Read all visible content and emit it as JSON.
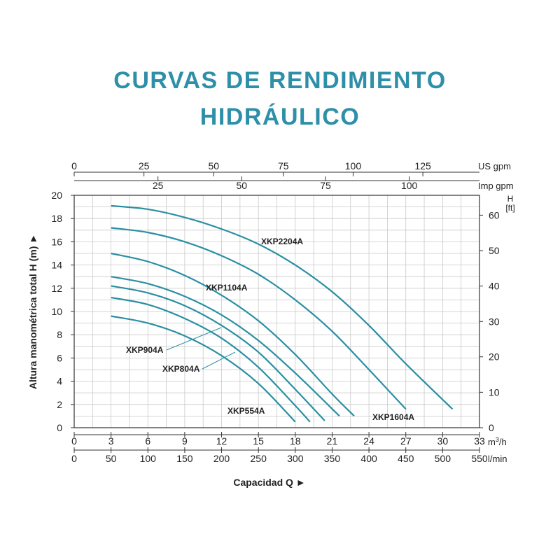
{
  "header": {
    "title_line1": "CURVAS DE RENDIMIENTO",
    "title_line2": "HIDRÁULICO",
    "title_color": "#2e8fa8"
  },
  "chart_data": {
    "type": "line",
    "title": "CURVAS DE RENDIMIENTO HIDRÁULICO",
    "curve_color": "#2a8fa3",
    "grid": true,
    "ylabel": "Altura manométrica total H (m) ►",
    "xlabel": "Capacidad Q ►",
    "x_unit_label": "m³/h",
    "x_unit_base": "m",
    "x_unit_sup": "3",
    "x_unit_tail": "/h",
    "xlim": [
      0,
      33
    ],
    "ylim": [
      0,
      20
    ],
    "x_ticks": [
      "0",
      "3",
      "6",
      "9",
      "12",
      "15",
      "18",
      "21",
      "24",
      "27",
      "30",
      "33"
    ],
    "y_ticks": [
      "0",
      "2",
      "4",
      "6",
      "8",
      "10",
      "12",
      "14",
      "16",
      "18",
      "20"
    ],
    "secondary_x_axes": [
      {
        "label": "l/min",
        "ticks": [
          {
            "label": "0",
            "at": 0
          },
          {
            "label": "50",
            "at": 3
          },
          {
            "label": "100",
            "at": 6
          },
          {
            "label": "150",
            "at": 9
          },
          {
            "label": "200",
            "at": 12
          },
          {
            "label": "250",
            "at": 15
          },
          {
            "label": "300",
            "at": 18
          },
          {
            "label": "350",
            "at": 21
          },
          {
            "label": "400",
            "at": 24
          },
          {
            "label": "450",
            "at": 27
          },
          {
            "label": "500",
            "at": 30
          },
          {
            "label": "550",
            "at": 33
          }
        ]
      },
      {
        "label": "US gpm",
        "ticks": [
          {
            "label": "0",
            "at": 0
          },
          {
            "label": "25",
            "at": 5.68
          },
          {
            "label": "50",
            "at": 11.36
          },
          {
            "label": "75",
            "at": 17.03
          },
          {
            "label": "100",
            "at": 22.71
          },
          {
            "label": "125",
            "at": 28.39
          }
        ]
      },
      {
        "label": "Imp gpm",
        "ticks": [
          {
            "label": "25",
            "at": 6.82
          },
          {
            "label": "50",
            "at": 13.64
          },
          {
            "label": "75",
            "at": 20.46
          },
          {
            "label": "100",
            "at": 27.28
          }
        ]
      }
    ],
    "secondary_y_axis": {
      "label_line1": "H",
      "label_line2": "[ft]",
      "ticks": [
        {
          "label": "0",
          "at": 0
        },
        {
          "label": "10",
          "at": 3.05
        },
        {
          "label": "20",
          "at": 6.1
        },
        {
          "label": "30",
          "at": 9.14
        },
        {
          "label": "40",
          "at": 12.19
        },
        {
          "label": "50",
          "at": 15.24
        },
        {
          "label": "60",
          "at": 18.29
        }
      ]
    },
    "series": [
      {
        "name": "XKP554A",
        "x": [
          3,
          6,
          9,
          12,
          15,
          18
        ],
        "y": [
          9.6,
          9.0,
          7.9,
          6.2,
          3.8,
          0.5
        ]
      },
      {
        "name": "XKP804A",
        "x": [
          3,
          6,
          9,
          12,
          15,
          18,
          19.2
        ],
        "y": [
          11.2,
          10.6,
          9.4,
          7.7,
          5.2,
          1.9,
          0.5
        ]
      },
      {
        "name": "XKP904A",
        "x": [
          3,
          6,
          9,
          12,
          15,
          18,
          20.4
        ],
        "y": [
          12.2,
          11.6,
          10.5,
          8.8,
          6.5,
          3.3,
          0.6
        ]
      },
      {
        "name": "XKP1104A",
        "x": [
          3,
          6,
          9,
          12,
          15,
          18,
          21.6
        ],
        "y": [
          13.0,
          12.4,
          11.3,
          9.7,
          7.5,
          4.7,
          1.0
        ]
      },
      {
        "name": "",
        "x": [
          3,
          6,
          9,
          12,
          15,
          18,
          21,
          22.8
        ],
        "y": [
          15.0,
          14.3,
          13.1,
          11.4,
          9.2,
          6.3,
          2.9,
          1.0
        ]
      },
      {
        "name": "XKP1604A",
        "x": [
          3,
          6,
          9,
          12,
          15,
          18,
          21,
          24,
          27
        ],
        "y": [
          17.2,
          16.8,
          16.0,
          14.8,
          13.2,
          11.0,
          8.3,
          5.0,
          1.6
        ]
      },
      {
        "name": "XKP2204A",
        "x": [
          3,
          6,
          9,
          12,
          15,
          18,
          21,
          24,
          27,
          30.8
        ],
        "y": [
          19.1,
          18.8,
          18.1,
          17.1,
          15.8,
          14.0,
          11.7,
          8.8,
          5.5,
          1.6
        ]
      }
    ]
  }
}
